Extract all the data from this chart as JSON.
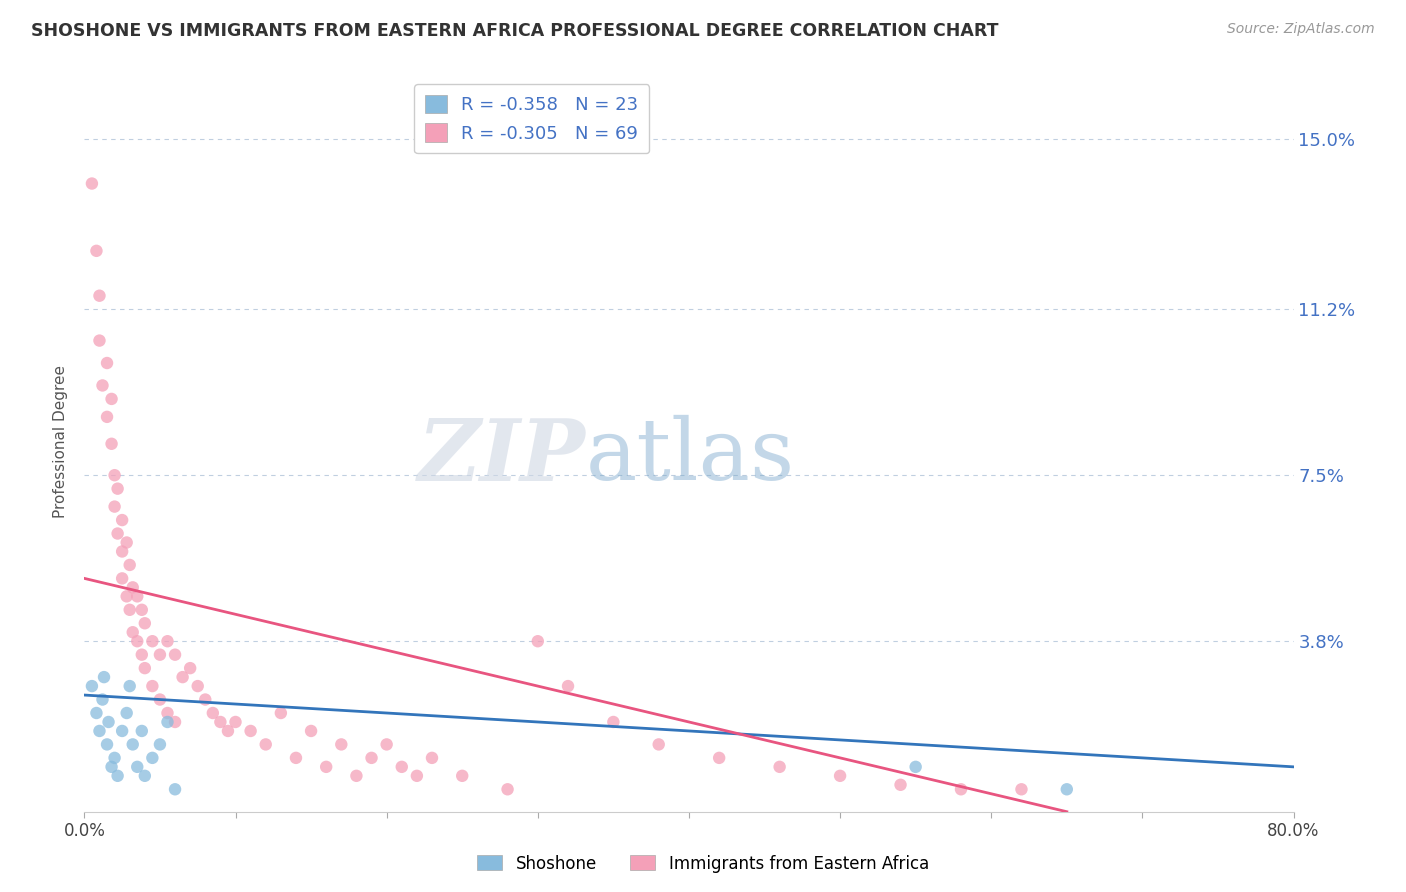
{
  "title": "SHOSHONE VS IMMIGRANTS FROM EASTERN AFRICA PROFESSIONAL DEGREE CORRELATION CHART",
  "source": "Source: ZipAtlas.com",
  "ylabel": "Professional Degree",
  "xlim": [
    0.0,
    0.8
  ],
  "ylim": [
    0.0,
    0.165
  ],
  "ytick_vals": [
    0.0,
    0.038,
    0.075,
    0.112,
    0.15
  ],
  "ytick_labels": [
    "",
    "3.8%",
    "7.5%",
    "11.2%",
    "15.0%"
  ],
  "xtick_vals": [
    0.0,
    0.1,
    0.2,
    0.3,
    0.4,
    0.5,
    0.6,
    0.7,
    0.8
  ],
  "xtick_labels": [
    "0.0%",
    "",
    "",
    "",
    "",
    "",
    "",
    "",
    "80.0%"
  ],
  "shoshone_color": "#88bbdd",
  "eastern_africa_color": "#f4a0b8",
  "shoshone_line_color": "#3375bb",
  "eastern_africa_line_color": "#e85580",
  "shoshone_R": -0.358,
  "shoshone_N": 23,
  "eastern_africa_R": -0.305,
  "eastern_africa_N": 69,
  "shoshone_line_x0": 0.0,
  "shoshone_line_y0": 0.026,
  "shoshone_line_x1": 0.8,
  "shoshone_line_y1": 0.01,
  "eastern_africa_line_x0": 0.0,
  "eastern_africa_line_y0": 0.052,
  "eastern_africa_line_x1": 0.65,
  "eastern_africa_line_y1": 0.0,
  "shoshone_x": [
    0.005,
    0.008,
    0.01,
    0.012,
    0.013,
    0.015,
    0.016,
    0.018,
    0.02,
    0.022,
    0.025,
    0.028,
    0.03,
    0.032,
    0.035,
    0.038,
    0.04,
    0.045,
    0.05,
    0.055,
    0.06,
    0.55,
    0.65
  ],
  "shoshone_y": [
    0.028,
    0.022,
    0.018,
    0.025,
    0.03,
    0.015,
    0.02,
    0.01,
    0.012,
    0.008,
    0.018,
    0.022,
    0.028,
    0.015,
    0.01,
    0.018,
    0.008,
    0.012,
    0.015,
    0.02,
    0.005,
    0.01,
    0.005
  ],
  "eastern_africa_x": [
    0.005,
    0.008,
    0.01,
    0.01,
    0.012,
    0.015,
    0.015,
    0.018,
    0.018,
    0.02,
    0.02,
    0.022,
    0.022,
    0.025,
    0.025,
    0.025,
    0.028,
    0.028,
    0.03,
    0.03,
    0.032,
    0.032,
    0.035,
    0.035,
    0.038,
    0.038,
    0.04,
    0.04,
    0.045,
    0.045,
    0.05,
    0.05,
    0.055,
    0.055,
    0.06,
    0.06,
    0.065,
    0.07,
    0.075,
    0.08,
    0.085,
    0.09,
    0.095,
    0.1,
    0.11,
    0.12,
    0.13,
    0.14,
    0.15,
    0.16,
    0.17,
    0.18,
    0.19,
    0.2,
    0.21,
    0.22,
    0.23,
    0.25,
    0.28,
    0.3,
    0.32,
    0.35,
    0.38,
    0.42,
    0.46,
    0.5,
    0.54,
    0.58,
    0.62
  ],
  "eastern_africa_y": [
    0.14,
    0.125,
    0.115,
    0.105,
    0.095,
    0.1,
    0.088,
    0.092,
    0.082,
    0.075,
    0.068,
    0.072,
    0.062,
    0.065,
    0.058,
    0.052,
    0.06,
    0.048,
    0.055,
    0.045,
    0.05,
    0.04,
    0.048,
    0.038,
    0.045,
    0.035,
    0.042,
    0.032,
    0.038,
    0.028,
    0.035,
    0.025,
    0.038,
    0.022,
    0.035,
    0.02,
    0.03,
    0.032,
    0.028,
    0.025,
    0.022,
    0.02,
    0.018,
    0.02,
    0.018,
    0.015,
    0.022,
    0.012,
    0.018,
    0.01,
    0.015,
    0.008,
    0.012,
    0.015,
    0.01,
    0.008,
    0.012,
    0.008,
    0.005,
    0.038,
    0.028,
    0.02,
    0.015,
    0.012,
    0.01,
    0.008,
    0.006,
    0.005,
    0.005
  ]
}
